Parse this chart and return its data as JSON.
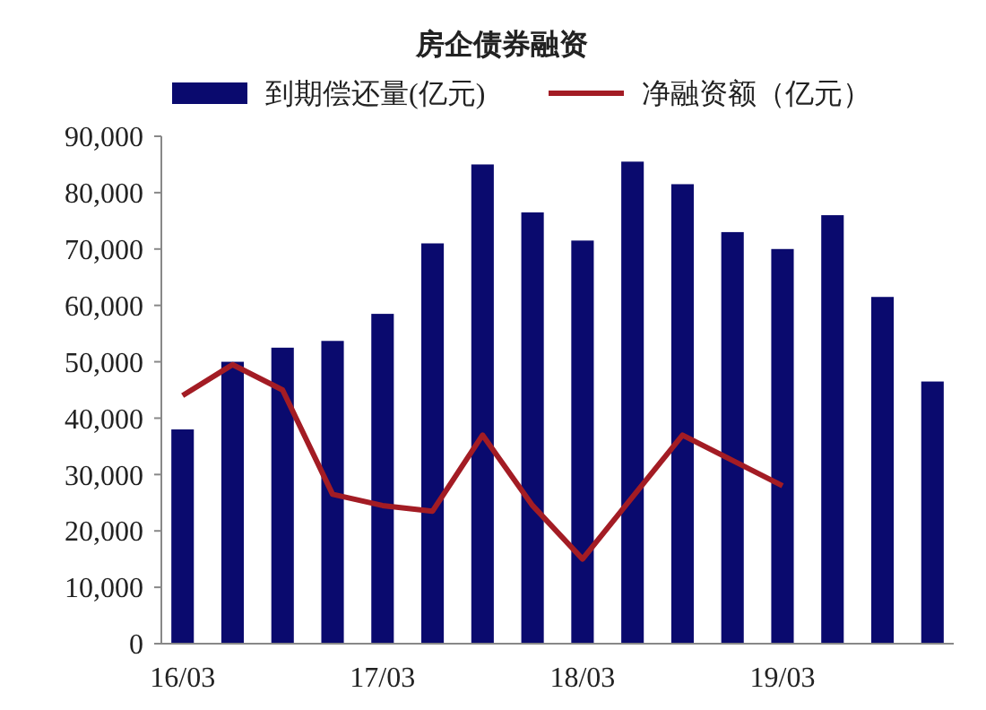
{
  "chart_data": {
    "type": "bar",
    "title": "房企债券融资",
    "categories": [
      "16/03",
      null,
      null,
      null,
      "17/03",
      null,
      null,
      null,
      "18/03",
      null,
      null,
      null,
      "19/03",
      null,
      null,
      null
    ],
    "series": [
      {
        "name": "到期偿还量(亿元)",
        "color": "#0a0a6e",
        "values": [
          38000,
          50000,
          52500,
          53700,
          58500,
          71000,
          85000,
          76500,
          71500,
          85500,
          81500,
          73000,
          70000,
          76000,
          61500,
          46500
        ]
      },
      {
        "name": "净融资额（亿元）",
        "type": "line",
        "color": "#a31c24",
        "values": [
          44000,
          49500,
          45000,
          26500,
          24500,
          23500,
          37000,
          24500,
          15000,
          26000,
          37000,
          32500,
          28000,
          null,
          null,
          null
        ]
      }
    ],
    "ylim": [
      0,
      90000
    ],
    "yticks": [
      {
        "value": 0,
        "label": "0"
      },
      {
        "value": 10000,
        "label": "10,000"
      },
      {
        "value": 20000,
        "label": "20,000"
      },
      {
        "value": 30000,
        "label": "30,000"
      },
      {
        "value": 40000,
        "label": "40,000"
      },
      {
        "value": 50000,
        "label": "50,000"
      },
      {
        "value": 60000,
        "label": "60,000"
      },
      {
        "value": 70000,
        "label": "70,000"
      },
      {
        "value": 80000,
        "label": "80,000"
      },
      {
        "value": 90000,
        "label": "90,000"
      }
    ],
    "legend": "top",
    "grid": false
  }
}
